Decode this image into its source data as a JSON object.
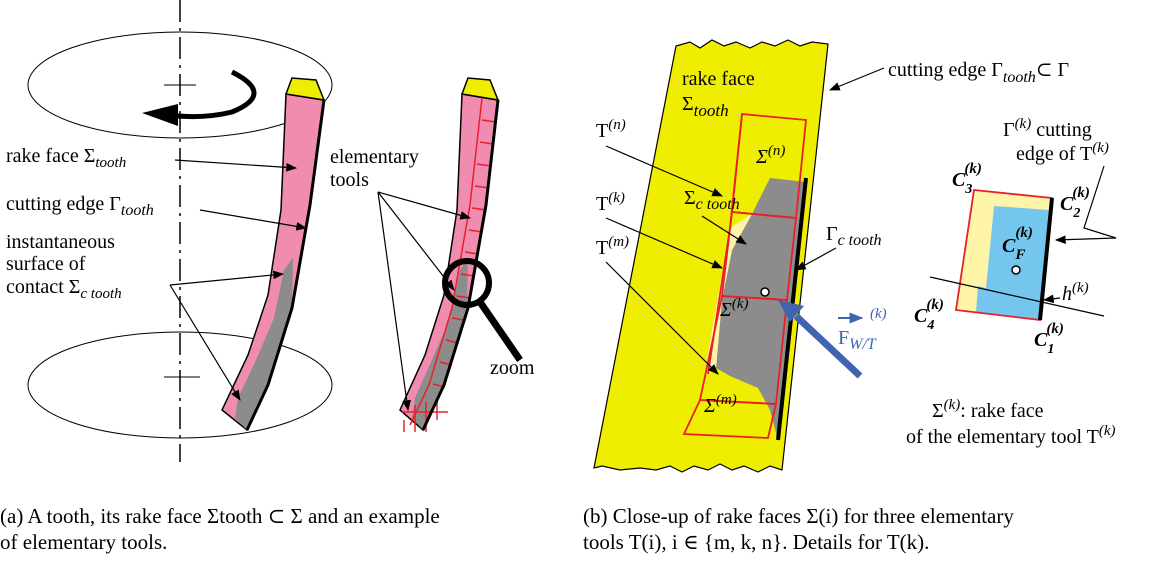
{
  "panel_a": {
    "labels": {
      "rake_face": "rake face Σ",
      "rake_face_sub": "tooth",
      "cutting_edge": "cutting edge Γ",
      "cutting_edge_sub": "tooth",
      "contact_1": "instantaneous",
      "contact_2": "surface of",
      "contact_3": "contact Σ",
      "contact_sub": "c tooth",
      "elementary_1": "elementary",
      "elementary_2": "tools",
      "zoom": "zoom"
    },
    "caption_1": "(a) A tooth, its rake face Σtooth ⊂ Σ and an example",
    "caption_2": "of elementary tools."
  },
  "panel_b": {
    "labels": {
      "rake_face_1": "rake face",
      "rake_face_sigma": "Σ",
      "rake_face_sub": "tooth",
      "cutting_edge": "cutting edge Γ",
      "cutting_edge_sub": "tooth",
      "cutting_edge_tail": "⊂ Γ",
      "T": "T",
      "n": "(n)",
      "k": "(k)",
      "m": "(m)",
      "sigma": "Σ",
      "sigma_c": "Σ",
      "sigma_c_sub": "c tooth",
      "gamma_c": "Γ",
      "gamma_c_sub": "c tooth",
      "force_F": "F",
      "force_sub": "W/T",
      "force_sup": "(k)",
      "gamma_k_1": "Γ",
      "gamma_k_2": "cutting",
      "gamma_k_3": "edge of  T",
      "C": "C",
      "C_F_sub": "F",
      "h": "h",
      "bottom_1": ": rake face",
      "bottom_2": "of the elementary tool T"
    },
    "caption_1": "(b) Close-up of rake faces Σ(i) for three elementary",
    "caption_2": "tools T(i), i ∈ {m, k, n}. Details for T(k)."
  },
  "colors": {
    "yellow": "#f0ee00",
    "light_yellow": "#fff5a8",
    "pink": "#f08cb0",
    "gray": "#8c8c8c",
    "blue_light": "#74c6ee",
    "arrow_blue": "#3f64b0",
    "red": "#e8202a"
  }
}
